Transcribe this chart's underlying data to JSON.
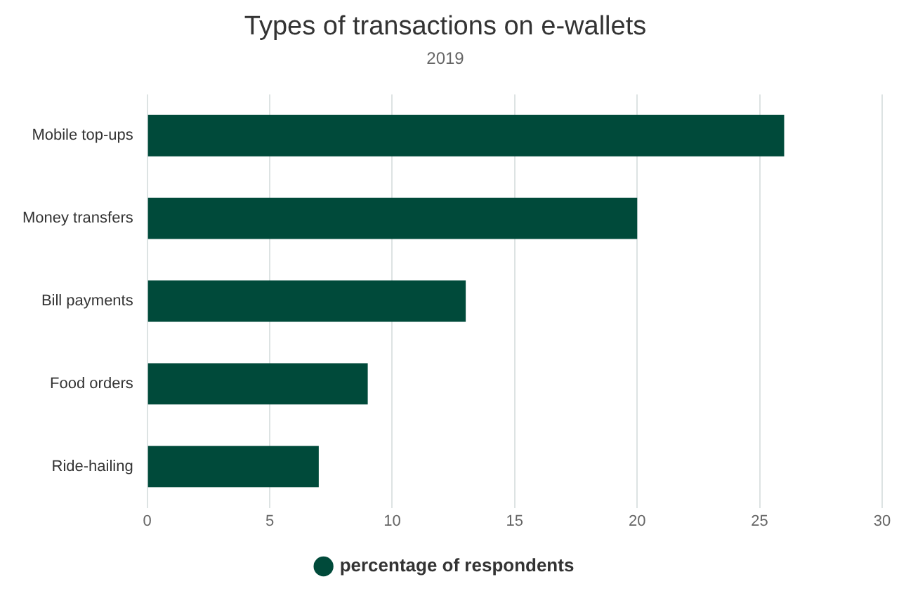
{
  "chart_data": {
    "type": "bar",
    "orientation": "horizontal",
    "title": "Types of transactions on e-wallets",
    "subtitle": "2019",
    "categories": [
      "Mobile top-ups",
      "Money transfers",
      "Bill payments",
      "Food orders",
      "Ride-hailing"
    ],
    "series": [
      {
        "name": "percentage of respondents",
        "color": "#004a3a",
        "values": [
          26,
          20,
          13,
          9,
          7
        ]
      }
    ],
    "xlim": [
      0,
      30
    ],
    "xticks": [
      0,
      5,
      10,
      15,
      20,
      25,
      30
    ],
    "grid": "x",
    "legend": "bottom"
  }
}
